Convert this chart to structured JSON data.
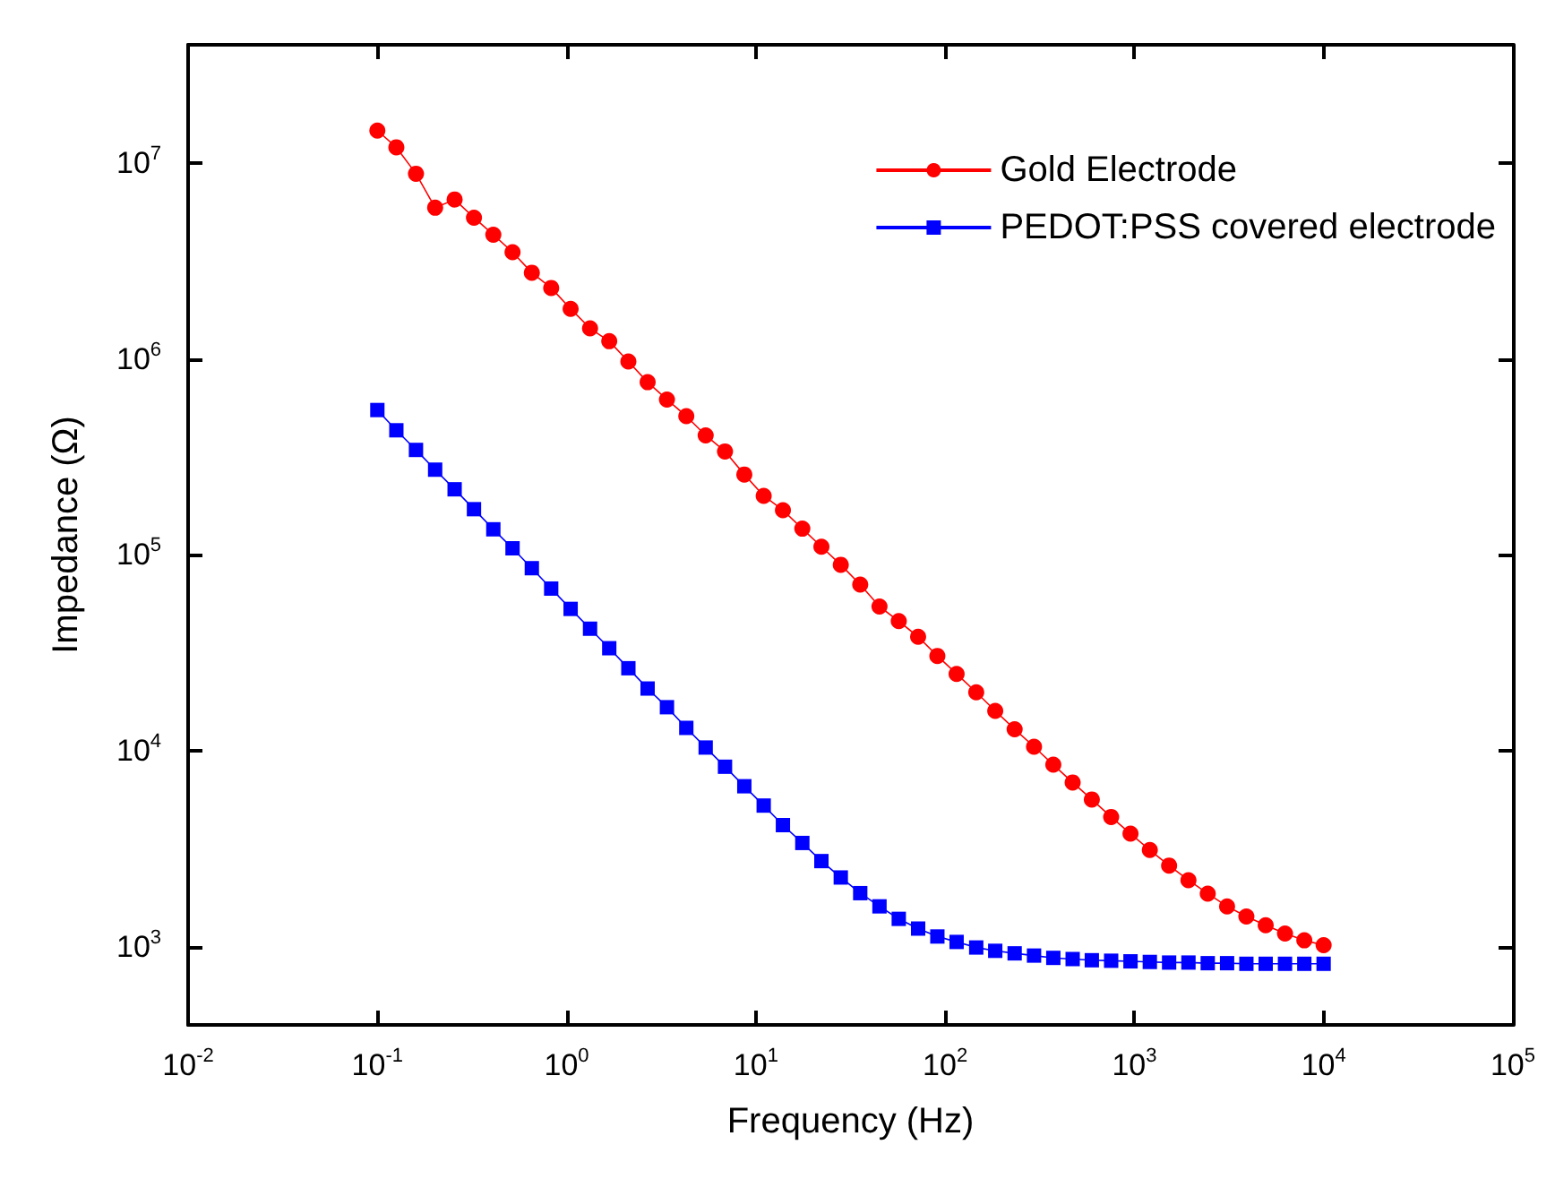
{
  "chart_data": {
    "type": "line",
    "xlabel": "Frequency (Hz)",
    "ylabel": "Impedance (Ω)",
    "log": "xy",
    "grid": false,
    "legend": "top right",
    "line_style": "solid",
    "x": [
      0.1,
      0.126,
      0.16,
      0.202,
      0.256,
      0.324,
      0.41,
      0.518,
      0.655,
      0.829,
      1.05,
      1.33,
      1.68,
      2.12,
      2.68,
      3.39,
      4.29,
      5.43,
      6.87,
      8.69,
      11.0,
      13.9,
      17.6,
      22.2,
      28.1,
      35.6,
      45.0,
      56.9,
      72.0,
      91.0,
      115,
      146,
      184,
      233,
      295,
      373,
      472,
      596,
      754,
      954,
      1207,
      1526,
      1931,
      2442,
      3089,
      3907,
      4942,
      6251,
      7906,
      10000
    ],
    "xlim": [
      0.01,
      100000
    ],
    "xticks": [
      {
        "value": 0.01,
        "label": "10$^{-2}$"
      },
      {
        "value": 0.1,
        "label": "10$^{-1}$"
      },
      {
        "value": 1,
        "label": "10$^{0}$"
      },
      {
        "value": 10,
        "label": "10$^{1}$"
      },
      {
        "value": 100,
        "label": "10$^{2}$"
      },
      {
        "value": 1000,
        "label": "10$^{3}$"
      },
      {
        "value": 10000,
        "label": "10$^{4}$"
      },
      {
        "value": 100000,
        "label": "10$^{5}$"
      }
    ],
    "ylim": [
      400,
      40000000
    ],
    "yticks": [
      {
        "value": 1000,
        "label": "10$^{3}$"
      },
      {
        "value": 10000,
        "label": "10$^{4}$"
      },
      {
        "value": 100000,
        "label": "10$^{5}$"
      },
      {
        "value": 1000000,
        "label": "10$^{6}$"
      },
      {
        "value": 10000000,
        "label": "10$^{7}$"
      }
    ],
    "series": [
      {
        "name": "Gold Electrode",
        "color": "#ff0000",
        "marker": "circle",
        "values": [
          14600000,
          12000000,
          8800000,
          5900000,
          6500000,
          5250000,
          4300000,
          3500000,
          2750000,
          2300000,
          1800000,
          1430000,
          1230000,
          970000,
          760000,
          620000,
          510000,
          407000,
          337000,
          257000,
          200000,
          169000,
          136000,
          110000,
          89000,
          70500,
          54500,
          45900,
          38200,
          30500,
          24700,
          19900,
          16000,
          12900,
          10500,
          8500,
          6900,
          5650,
          4600,
          3780,
          3120,
          2600,
          2190,
          1870,
          1610,
          1430,
          1290,
          1170,
          1080,
          1020
        ]
      },
      {
        "name": "PEDOT:PSS covered electrode",
        "color": "#0000ff",
        "marker": "square",
        "values": [
          548000,
          432000,
          343000,
          272000,
          216000,
          171000,
          135000,
          108000,
          85500,
          67300,
          53000,
          42000,
          33400,
          26400,
          20800,
          16700,
          13100,
          10400,
          8300,
          6600,
          5260,
          4180,
          3390,
          2740,
          2260,
          1880,
          1610,
          1390,
          1240,
          1130,
          1060,
          993,
          955,
          927,
          903,
          879,
          867,
          855,
          850,
          844,
          838,
          832,
          832,
          826,
          826,
          820,
          820,
          820,
          820,
          820
        ]
      }
    ]
  }
}
